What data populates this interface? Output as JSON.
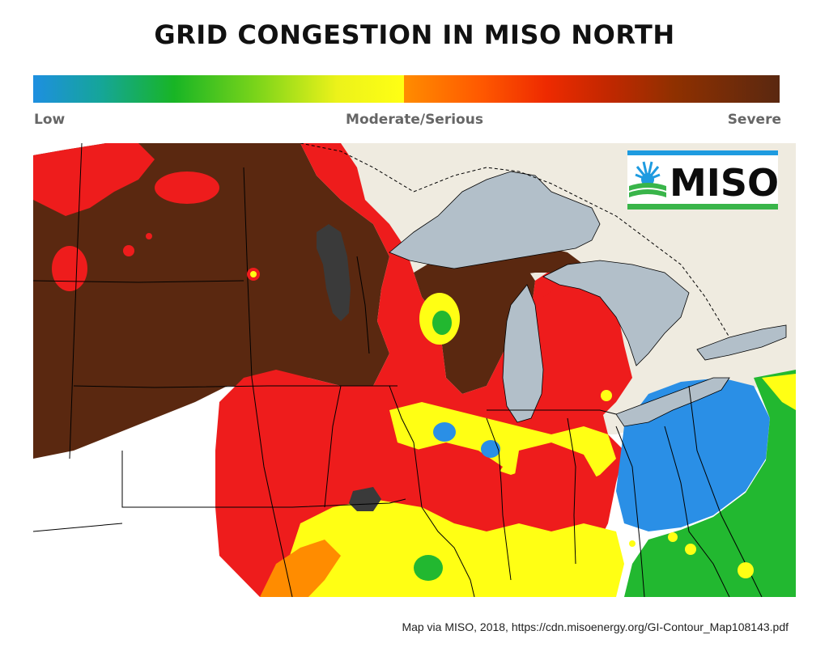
{
  "title": "GRID CONGESTION IN MISO NORTH",
  "legend": {
    "low_label": "Low",
    "mid_label": "Moderate/Serious",
    "high_label": "Severe",
    "colors": {
      "low": "#1e8fe0",
      "low_mid": "#18b525",
      "moderate": "#ffff14",
      "serious": "#ff8c00",
      "high": "#ee2a00",
      "severe": "#5a2810"
    }
  },
  "logo": {
    "text": "MISO",
    "icon": "miso-sunrise-logo-icon",
    "colors": {
      "text": "#0c0c0c",
      "blue": "#1e9be0",
      "green": "#39b54a"
    }
  },
  "credit": "Map via  MISO, 2018, https://cdn.misoenergy.org/GI-Contour_Map108143.pdf",
  "map": {
    "colors": {
      "lake": "#b2bfc9",
      "canada": "#efebe0",
      "severe": "#5a2810",
      "red": "#ee1c1c",
      "orange": "#ff8c00",
      "yellow": "#ffff14",
      "green": "#22b830",
      "blue": "#2a8fe6",
      "dark": "#3a3a3a",
      "border": "#000000",
      "outside": "#ffffff"
    }
  }
}
